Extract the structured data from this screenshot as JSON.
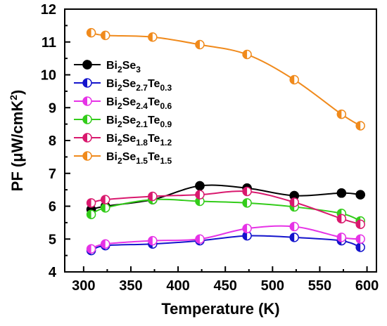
{
  "chart_data": {
    "type": "line",
    "xlabel": "Temperature (K)",
    "ylabel": "PF (μW/cmK²)",
    "xlim": [
      280,
      610
    ],
    "ylim": [
      4,
      12
    ],
    "xticks": [
      300,
      350,
      400,
      450,
      500,
      550,
      600
    ],
    "yticks": [
      4,
      5,
      6,
      7,
      8,
      9,
      10,
      11,
      12
    ],
    "grid": false,
    "legend_position": "top-left",
    "marker": "half-filled circle",
    "series": [
      {
        "name": "Bi2Se3",
        "color": "#000000",
        "x": [
          308,
          323,
          373,
          423,
          473,
          523,
          573,
          593
        ],
        "y": [
          5.9,
          6.0,
          6.2,
          6.62,
          6.55,
          6.32,
          6.4,
          6.35
        ]
      },
      {
        "name": "Bi2Se2.7Te0.3",
        "color": "#1414cc",
        "x": [
          308,
          323,
          373,
          423,
          473,
          523,
          573,
          593
        ],
        "y": [
          4.65,
          4.8,
          4.85,
          4.95,
          5.1,
          5.05,
          4.95,
          4.75
        ]
      },
      {
        "name": "Bi2Se2.4Te0.6",
        "color": "#e633e6",
        "x": [
          308,
          323,
          373,
          423,
          473,
          523,
          573,
          593
        ],
        "y": [
          4.7,
          4.85,
          4.95,
          5.0,
          5.32,
          5.38,
          5.05,
          5.0
        ]
      },
      {
        "name": "Bi2Se2.1Te0.9",
        "color": "#33cc1a",
        "x": [
          308,
          323,
          373,
          423,
          473,
          523,
          573,
          593
        ],
        "y": [
          5.75,
          5.95,
          6.2,
          6.15,
          6.1,
          5.98,
          5.78,
          5.55
        ]
      },
      {
        "name": "Bi2Se1.8Te1.2",
        "color": "#d9196e",
        "x": [
          308,
          323,
          373,
          423,
          473,
          523,
          573,
          593
        ],
        "y": [
          6.1,
          6.2,
          6.3,
          6.35,
          6.45,
          6.12,
          5.62,
          5.45
        ]
      },
      {
        "name": "Bi2Se1.5Te1.5",
        "color": "#f08a1c",
        "x": [
          308,
          323,
          373,
          423,
          473,
          523,
          573,
          593
        ],
        "y": [
          11.28,
          11.2,
          11.15,
          10.92,
          10.62,
          9.85,
          8.8,
          8.45
        ]
      }
    ],
    "legend": [
      {
        "base": "Bi",
        "parts": [
          [
            "2",
            "sub"
          ],
          [
            "Se",
            ""
          ],
          [
            "3",
            "sub"
          ]
        ]
      },
      {
        "base": "Bi",
        "parts": [
          [
            "2",
            "sub"
          ],
          [
            "Se",
            ""
          ],
          [
            "2.7",
            "sub"
          ],
          [
            "Te",
            ""
          ],
          [
            "0.3",
            "sub"
          ]
        ]
      },
      {
        "base": "Bi",
        "parts": [
          [
            "2",
            "sub"
          ],
          [
            "Se",
            ""
          ],
          [
            "2.4",
            "sub"
          ],
          [
            "Te",
            ""
          ],
          [
            "0.6",
            "sub"
          ]
        ]
      },
      {
        "base": "Bi",
        "parts": [
          [
            "2",
            "sub"
          ],
          [
            "Se",
            ""
          ],
          [
            "2.1",
            "sub"
          ],
          [
            "Te",
            ""
          ],
          [
            "0.9",
            "sub"
          ]
        ]
      },
      {
        "base": "Bi",
        "parts": [
          [
            "2",
            "sub"
          ],
          [
            "Se",
            ""
          ],
          [
            "1.8",
            "sub"
          ],
          [
            "Te",
            ""
          ],
          [
            "1.2",
            "sub"
          ]
        ]
      },
      {
        "base": "Bi",
        "parts": [
          [
            "2",
            "sub"
          ],
          [
            "Se",
            ""
          ],
          [
            "1.5",
            "sub"
          ],
          [
            "Te",
            ""
          ],
          [
            "1.5",
            "sub"
          ]
        ]
      }
    ]
  }
}
